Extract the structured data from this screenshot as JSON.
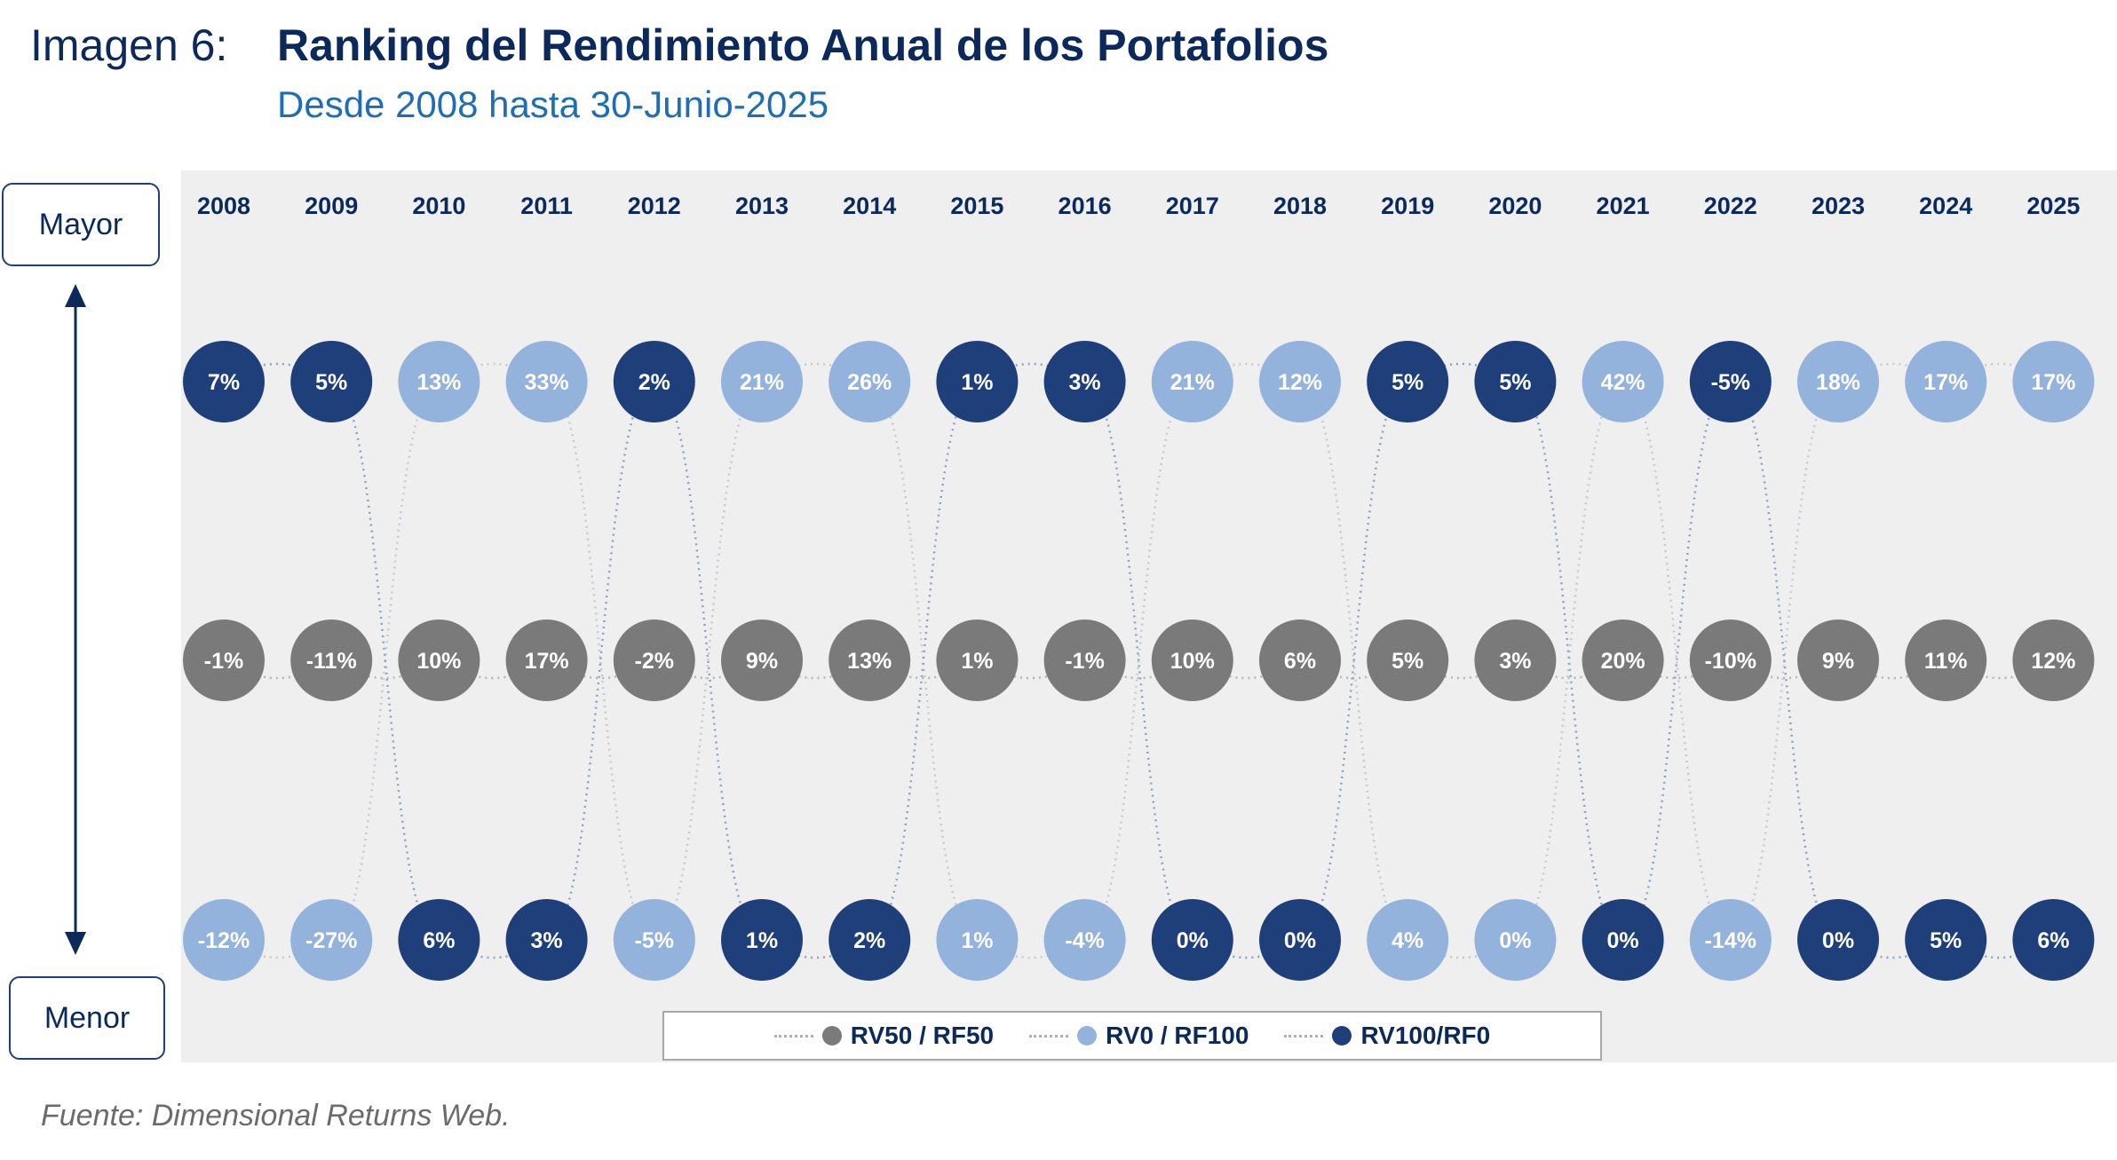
{
  "header": {
    "label": "Imagen 6:",
    "title": "Ranking del Rendimiento Anual de los Portafolios",
    "subtitle": "Desde 2008 hasta 30-Junio-2025"
  },
  "axis": {
    "top_label": "Mayor",
    "bottom_label": "Menor"
  },
  "source": "Fuente: Dimensional Returns Web.",
  "colors": {
    "panel": "#efefef",
    "RV50 / RF50": "#7a7a7a",
    "RV0 / RF100": "#94b3dc",
    "RV100/RF0": "#1e3f7a"
  },
  "chart_data": {
    "type": "rank-bubble",
    "years": [
      "2008",
      "2009",
      "2010",
      "2011",
      "2012",
      "2013",
      "2014",
      "2015",
      "2016",
      "2017",
      "2018",
      "2019",
      "2020",
      "2021",
      "2022",
      "2023",
      "2024",
      "2025"
    ],
    "series": [
      {
        "name": "RV50 / RF50",
        "values": [
          "-1%",
          "-11%",
          "10%",
          "17%",
          "-2%",
          "9%",
          "13%",
          "1%",
          "-1%",
          "10%",
          "6%",
          "5%",
          "3%",
          "20%",
          "-10%",
          "9%",
          "11%",
          "12%"
        ],
        "rank": [
          2,
          2,
          2,
          2,
          2,
          2,
          2,
          2,
          2,
          2,
          2,
          2,
          2,
          2,
          2,
          2,
          2,
          2
        ]
      },
      {
        "name": "RV0 / RF100",
        "values": [
          "-12%",
          "-27%",
          "13%",
          "33%",
          "-5%",
          "21%",
          "26%",
          "1%",
          "-4%",
          "21%",
          "12%",
          "4%",
          "0%",
          "42%",
          "-14%",
          "18%",
          "17%",
          "17%"
        ],
        "rank": [
          3,
          3,
          1,
          1,
          3,
          1,
          1,
          3,
          3,
          1,
          1,
          3,
          3,
          1,
          3,
          1,
          1,
          1
        ]
      },
      {
        "name": "RV100/RF0",
        "values": [
          "7%",
          "5%",
          "6%",
          "3%",
          "2%",
          "1%",
          "2%",
          "1%",
          "3%",
          "0%",
          "0%",
          "5%",
          "5%",
          "0%",
          "-5%",
          "0%",
          "5%",
          "6%"
        ],
        "rank": [
          1,
          1,
          3,
          3,
          1,
          3,
          3,
          1,
          1,
          3,
          3,
          1,
          1,
          3,
          1,
          3,
          3,
          3
        ]
      }
    ],
    "legend": [
      "RV50 / RF50",
      "RV0 / RF100",
      "RV100/RF0"
    ],
    "legend_position": "bottom-center"
  }
}
